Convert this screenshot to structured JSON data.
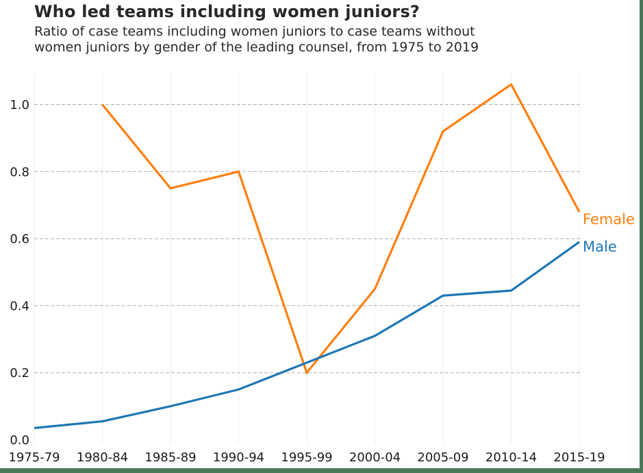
{
  "header": {
    "title": "Who led teams including women juniors?",
    "subtitle": "Ratio of case teams including women juniors to case teams without women juniors by gender of the leading counsel, from 1975 to 2019",
    "subtitle_lines": [
      "Ratio of case teams including women juniors to case teams without",
      "women juniors by gender of the leading counsel, from 1975 to 2019"
    ]
  },
  "page_style": {
    "background": "#ffffff",
    "accent_border_color": "#4b7a58",
    "title_color": "#282828",
    "tick_text_color": "#1a1a1a"
  },
  "chart_data": {
    "type": "line",
    "title": "Who led teams including women juniors?",
    "subtitle": "Ratio of case teams including women juniors to case teams without women juniors by gender of the leading counsel, from 1975 to 2019",
    "categories": [
      "1975-79",
      "1980-84",
      "1985-89",
      "1990-94",
      "1995-99",
      "2000-04",
      "2005-09",
      "2010-14",
      "2015-19"
    ],
    "series": [
      {
        "name": "Female",
        "color": "#ff7f0e",
        "values": [
          null,
          1.0,
          0.75,
          0.8,
          0.2,
          0.45,
          0.92,
          1.06,
          0.68
        ]
      },
      {
        "name": "Male",
        "color": "#1f77b4",
        "values": [
          0.035,
          0.055,
          0.1,
          0.15,
          0.23,
          0.31,
          0.43,
          0.445,
          0.59
        ]
      }
    ],
    "xlabel": "",
    "ylabel": "",
    "ylim": [
      0,
      1.1
    ],
    "yticks": [
      0.0,
      0.2,
      0.4,
      0.6,
      0.8,
      1.0
    ],
    "ytick_labels": [
      "0.0",
      "0.2",
      "0.4",
      "0.6",
      "0.8",
      "1.0"
    ],
    "grid": {
      "horizontal": "dashed",
      "vertical": "solid-light",
      "h_color": "#ababab",
      "v_color": "#ededed"
    },
    "legend_position": "line-end-labels",
    "line_width": 3.2
  }
}
